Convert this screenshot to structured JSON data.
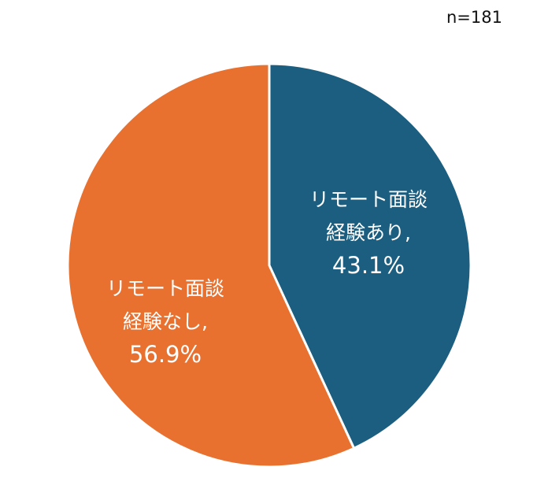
{
  "sample_size_label": "n=181",
  "chart_data": {
    "type": "pie",
    "title": "",
    "sample_size": "n=181",
    "start_angle_deg": 0,
    "direction": "clockwise",
    "slices": [
      {
        "label_line1": "リモート面談",
        "label_line2": "経験あり,",
        "percent_label": "43.1%",
        "value": 43.1,
        "color": "#1b5e80"
      },
      {
        "label_line1": "リモート面談",
        "label_line2": "経験なし,",
        "percent_label": "56.9%",
        "value": 56.9,
        "color": "#e87130"
      }
    ]
  }
}
